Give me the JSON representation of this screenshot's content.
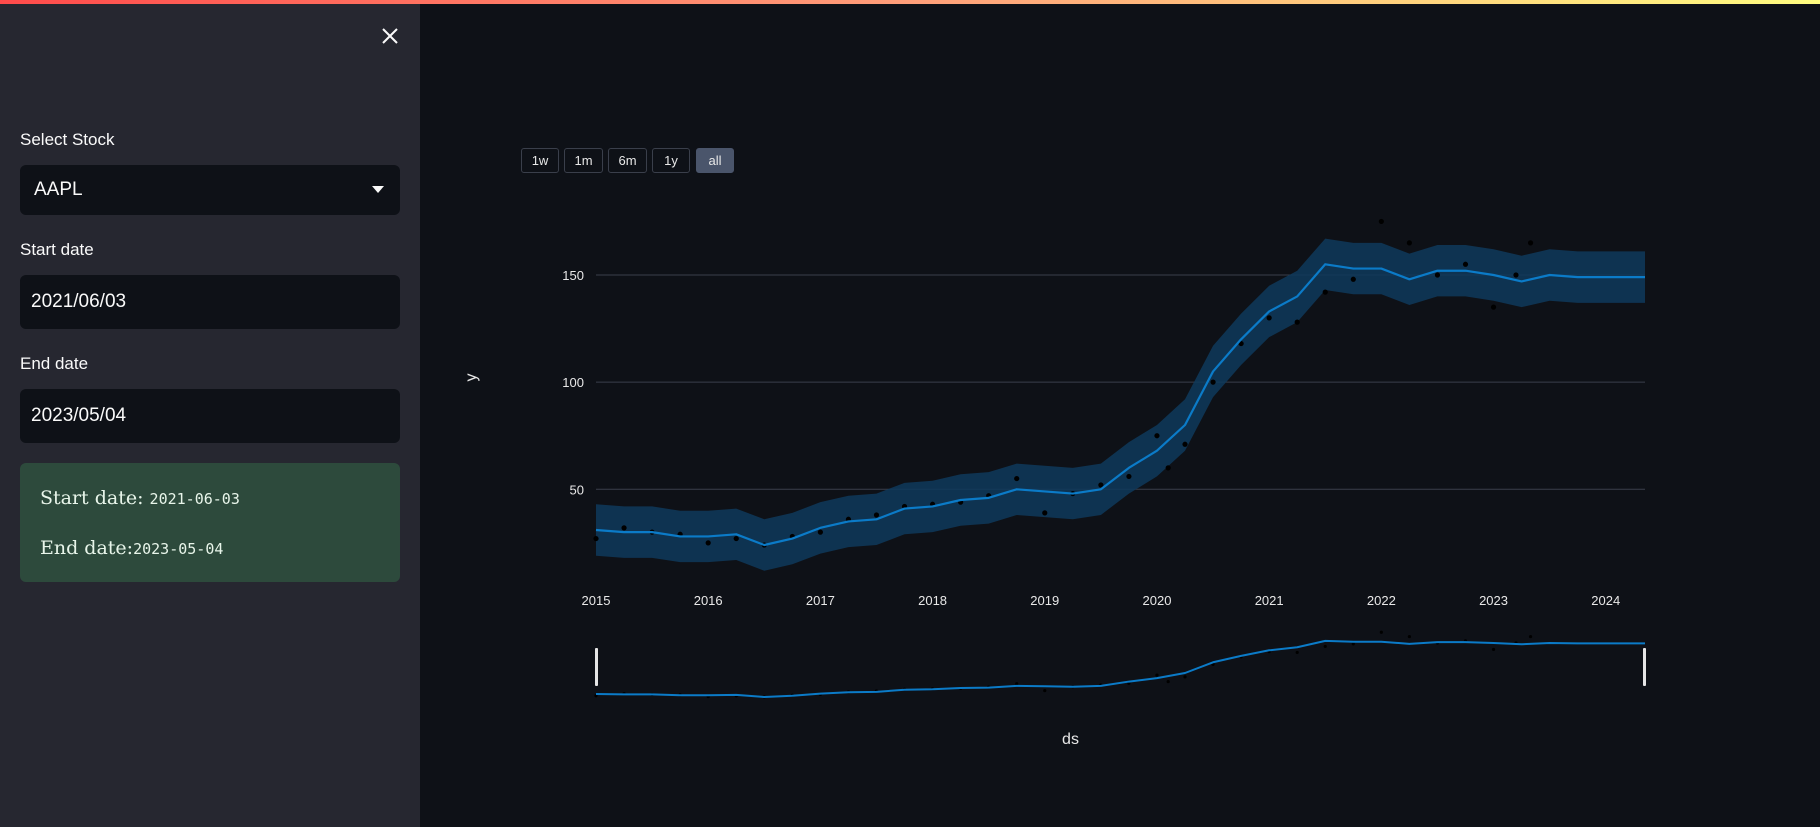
{
  "sidebar": {
    "select_label": "Select Stock",
    "select_value": "AAPL",
    "start_label": "Start date",
    "start_value": "2021/06/03",
    "end_label": "End date",
    "end_value": "2023/05/04",
    "info": {
      "start_prefix": "Start date: ",
      "start_code": "2021-06-03",
      "end_prefix": "End date:",
      "end_code": "2023-05-04"
    }
  },
  "range_buttons": [
    "1w",
    "1m",
    "6m",
    "1y",
    "all"
  ],
  "active_range": "all",
  "colors": {
    "forecast_line": "#0b7bc8",
    "uncertainty_band": "#0e3a5c",
    "actual_points": "#000000",
    "info_box": "#2d4a3c",
    "accent_bar": "#ff4b4b"
  },
  "chart_data": {
    "type": "line",
    "xlabel": "ds",
    "ylabel": "y",
    "x_ticks": [
      "2015",
      "2016",
      "2017",
      "2018",
      "2019",
      "2020",
      "2021",
      "2022",
      "2023",
      "2024"
    ],
    "y_ticks": [
      "50",
      "100",
      "150"
    ],
    "xlim": [
      2015.0,
      2024.35
    ],
    "ylim": [
      10,
      185
    ],
    "grid": "horizontal",
    "series": [
      {
        "role": "forecast",
        "x": [
          2015.0,
          2015.25,
          2015.5,
          2015.75,
          2016.0,
          2016.25,
          2016.5,
          2016.75,
          2017.0,
          2017.25,
          2017.5,
          2017.75,
          2018.0,
          2018.25,
          2018.5,
          2018.75,
          2019.0,
          2019.25,
          2019.5,
          2019.75,
          2020.0,
          2020.25,
          2020.5,
          2020.75,
          2021.0,
          2021.25,
          2021.5,
          2021.75,
          2022.0,
          2022.25,
          2022.5,
          2022.75,
          2023.0,
          2023.25,
          2023.5,
          2023.75,
          2024.0,
          2024.35
        ],
        "y": [
          31,
          30,
          30,
          28,
          28,
          29,
          24,
          27,
          32,
          35,
          36,
          41,
          42,
          45,
          46,
          50,
          49,
          48,
          50,
          60,
          68,
          80,
          105,
          120,
          133,
          140,
          155,
          153,
          153,
          148,
          152,
          152,
          150,
          147,
          150,
          149,
          149,
          149
        ]
      },
      {
        "role": "actual",
        "x": [
          2015.0,
          2015.25,
          2015.5,
          2015.75,
          2016.0,
          2016.25,
          2016.5,
          2016.75,
          2017.0,
          2017.25,
          2017.5,
          2017.75,
          2018.0,
          2018.25,
          2018.5,
          2018.75,
          2019.0,
          2019.25,
          2019.5,
          2019.75,
          2020.0,
          2020.1,
          2020.25,
          2020.5,
          2020.75,
          2021.0,
          2021.25,
          2021.5,
          2021.75,
          2022.0,
          2022.25,
          2022.5,
          2022.75,
          2023.0,
          2023.2,
          2023.33
        ],
        "y": [
          27,
          32,
          30,
          29,
          25,
          27,
          24,
          28,
          30,
          36,
          38,
          42,
          43,
          44,
          47,
          55,
          39,
          48,
          52,
          56,
          75,
          60,
          71,
          100,
          118,
          130,
          128,
          142,
          148,
          175,
          165,
          150,
          155,
          135,
          150,
          165
        ]
      }
    ],
    "range_slider": true
  }
}
